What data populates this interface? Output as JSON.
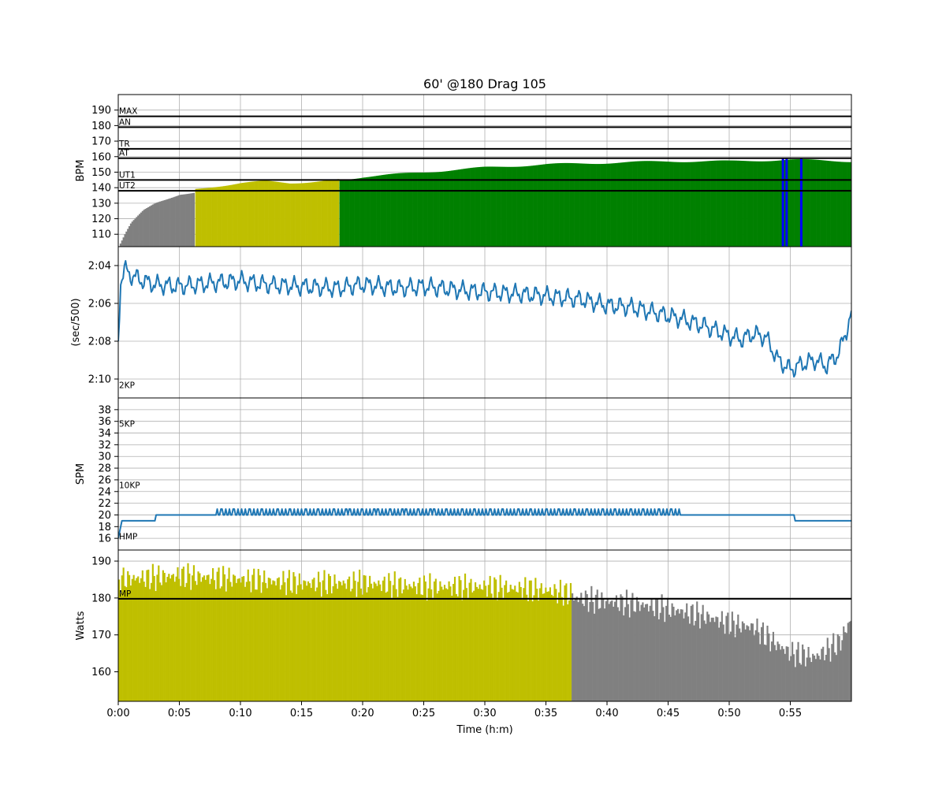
{
  "chart_data": {
    "type": "multi-panel",
    "title": "60' @180 Drag 105",
    "xlabel": "Time (h:m)",
    "x_ticks": [
      "0:00",
      "0:05",
      "0:10",
      "0:15",
      "0:20",
      "0:25",
      "0:30",
      "0:35",
      "0:40",
      "0:45",
      "0:50",
      "0:55"
    ],
    "x_unit": "minutes",
    "xlim": [
      0,
      60
    ],
    "grid": true,
    "colors": {
      "grey": "#808080",
      "yellow": "#bfbf00",
      "green": "#008000",
      "blue": "#0000ff",
      "line": "#1f77b4"
    },
    "panels": [
      {
        "id": "hr",
        "type": "bar",
        "ylabel": "BPM",
        "ylim": [
          102,
          200
        ],
        "yticks": [
          "110",
          "120",
          "130",
          "140",
          "150",
          "160",
          "170",
          "180",
          "190"
        ],
        "zones": [
          {
            "label": "MAX",
            "value": 186
          },
          {
            "label": "AN",
            "value": 179
          },
          {
            "label": "TR",
            "value": 165
          },
          {
            "label": "AT",
            "value": 159
          },
          {
            "label": "UT1",
            "value": 145
          },
          {
            "label": "UT2",
            "value": 138
          }
        ],
        "series": [
          {
            "color_key": "grey",
            "x": [
              0,
              0.5,
              1,
              1.5,
              2,
              3,
              4,
              5,
              6.2
            ],
            "values": [
              102,
              110,
              117,
              121,
              125,
              130,
              133,
              136,
              137
            ]
          },
          {
            "color_key": "yellow",
            "x": [
              6.3,
              8,
              10,
              12,
              14,
              16,
              18
            ],
            "values": [
              139,
              141,
              143,
              144,
              143,
              144,
              145
            ]
          },
          {
            "color_key": "green",
            "x": [
              18.1,
              20,
              25,
              30,
              35,
              40,
              45,
              50,
              55,
              60
            ],
            "values": [
              145,
              147,
              150,
              153,
              155,
              156,
              157,
              157,
              158,
              157
            ]
          },
          {
            "color_key": "blue",
            "x": [
              54.3,
              54.6,
              55.8
            ],
            "values": [
              159,
              159,
              159
            ]
          }
        ]
      },
      {
        "id": "pace",
        "type": "line",
        "ylabel": "(sec/500)",
        "ylim": [
          131,
          123
        ],
        "yticks": [
          "2:04",
          "2:06",
          "2:08",
          "2:10"
        ],
        "zones": [
          {
            "label": "2KP",
            "value": 130.6
          }
        ],
        "series": [
          {
            "color_key": "line",
            "x": [
              0,
              0.2,
              0.5,
              1,
              2,
              3,
              5,
              8,
              10,
              12,
              15,
              18,
              20,
              23,
              25,
              28,
              30,
              33,
              35,
              38,
              40,
              42,
              44,
              46,
              48,
              50,
              51,
              52,
              53,
              54,
              55,
              56,
              57,
              58,
              59,
              60
            ],
            "values": [
              128.0,
              124.8,
              124.2,
              124.5,
              124.8,
              125.0,
              125.1,
              124.9,
              124.8,
              125.0,
              125.1,
              125.2,
              125.0,
              125.2,
              125.1,
              125.3,
              125.4,
              125.5,
              125.6,
              125.8,
              126.1,
              126.2,
              126.5,
              126.8,
              127.2,
              127.7,
              127.9,
              127.6,
              127.8,
              129.0,
              129.5,
              129.2,
              129.0,
              129.3,
              128.6,
              126.6
            ]
          }
        ]
      },
      {
        "id": "spm",
        "type": "line",
        "ylabel": "SPM",
        "ylim": [
          14,
          40
        ],
        "yticks": [
          "16",
          "18",
          "20",
          "22",
          "24",
          "26",
          "28",
          "30",
          "32",
          "34",
          "36",
          "38"
        ],
        "zones": [
          {
            "label": "5KP",
            "value": 34.7
          },
          {
            "label": "10KP",
            "value": 24.2
          },
          {
            "label": "HMP",
            "value": 15.4
          }
        ],
        "series": [
          {
            "color_key": "line",
            "x": [
              0,
              0.3,
              3,
              3.1,
              15,
              25,
              30,
              40,
              50,
              55,
              56,
              60
            ],
            "values": [
              16,
              19,
              19,
              20,
              20.5,
              21,
              20.5,
              20.5,
              20,
              20,
              19.5,
              19.5
            ]
          }
        ]
      },
      {
        "id": "power",
        "type": "bar",
        "ylabel": "Watts",
        "ylim": [
          152,
          193
        ],
        "yticks": [
          "160",
          "170",
          "180",
          "190"
        ],
        "zones": [
          {
            "label": "MP",
            "value": 179.8
          }
        ],
        "series": [
          {
            "color_key": "yellow",
            "x": [
              0,
              5,
              10,
              15,
              20,
              25,
              30,
              35,
              37
            ],
            "values": [
              185,
              186,
              185,
              184,
              184,
              183,
              183,
              182,
              181
            ]
          },
          {
            "color_key": "grey",
            "x": [
              37.1,
              40,
              43,
              45,
              48,
              50,
              52,
              54,
              55,
              57,
              59,
              60
            ],
            "values": [
              180,
              179,
              178,
              177,
              175,
              173,
              172,
              167,
              165,
              164,
              168,
              175
            ]
          }
        ]
      }
    ]
  }
}
